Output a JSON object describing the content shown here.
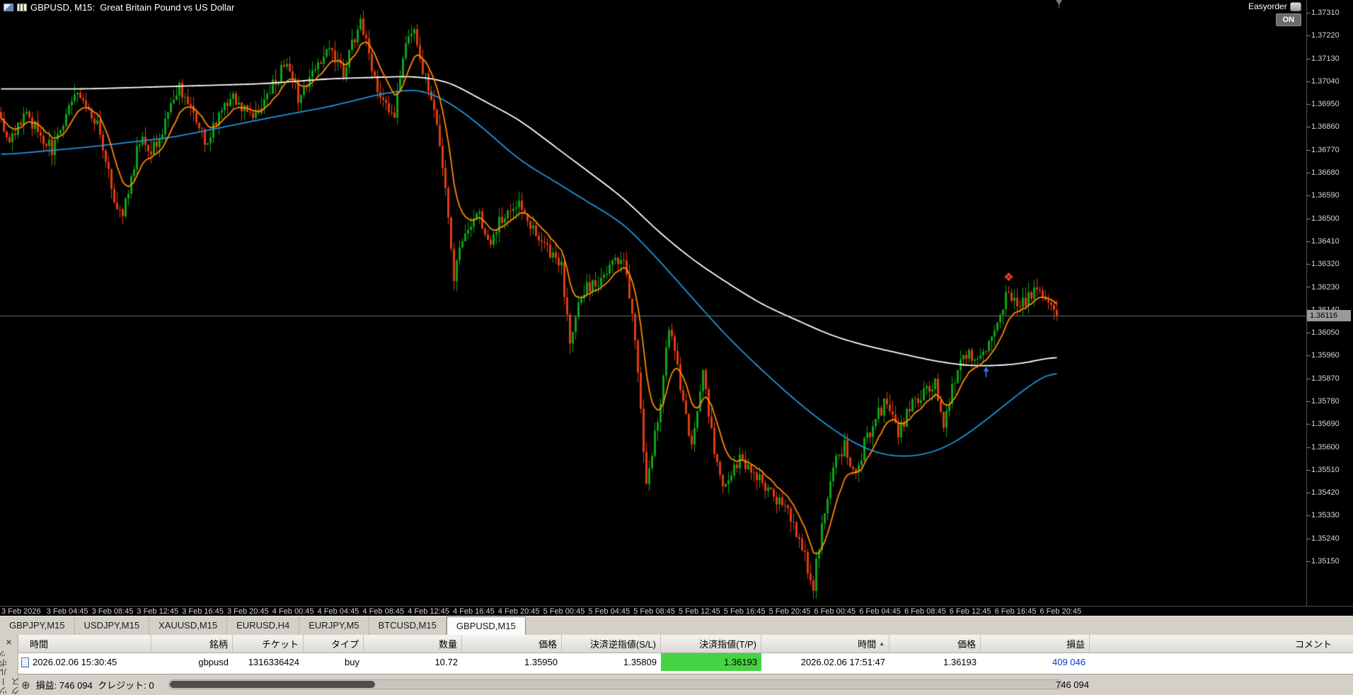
{
  "window": {
    "symbol_title": "GBPUSD, M15:  Great Britain Pound vs US Dollar",
    "easyorder_label": "Easyorder",
    "on_button": "ON"
  },
  "icons": {
    "close": "×",
    "expand": "⊕",
    "sort_asc": "▲"
  },
  "price_axis": {
    "current": "1.36116",
    "labels": [
      "1.37310",
      "1.37220",
      "1.37130",
      "1.37040",
      "1.36950",
      "1.36860",
      "1.36770",
      "1.36680",
      "1.36590",
      "1.36500",
      "1.36410",
      "1.36320",
      "1.36230",
      "1.36140",
      "1.36050",
      "1.35960",
      "1.35870",
      "1.35780",
      "1.35690",
      "1.35600",
      "1.35510",
      "1.35420",
      "1.35330",
      "1.35240",
      "1.35150"
    ]
  },
  "time_axis": {
    "labels": [
      "3 Feb 2026",
      "3 Feb 04:45",
      "3 Feb 08:45",
      "3 Feb 12:45",
      "3 Feb 16:45",
      "3 Feb 20:45",
      "4 Feb 00:45",
      "4 Feb 04:45",
      "4 Feb 08:45",
      "4 Feb 12:45",
      "4 Feb 16:45",
      "4 Feb 20:45",
      "5 Feb 00:45",
      "5 Feb 04:45",
      "5 Feb 08:45",
      "5 Feb 12:45",
      "5 Feb 16:45",
      "5 Feb 20:45",
      "6 Feb 00:45",
      "6 Feb 04:45",
      "6 Feb 08:45",
      "6 Feb 12:45",
      "6 Feb 16:45",
      "6 Feb 20:45"
    ]
  },
  "tabs": [
    {
      "label": "GBPJPY,M15",
      "active": false
    },
    {
      "label": "USDJPY,M15",
      "active": false
    },
    {
      "label": "XAUUSD,M15",
      "active": false
    },
    {
      "label": "EURUSD,H4",
      "active": false
    },
    {
      "label": "EURJPY,M5",
      "active": false
    },
    {
      "label": "BTCUSD,M15",
      "active": false
    },
    {
      "label": "GBPUSD,M15",
      "active": true
    }
  ],
  "terminal": {
    "toolbox_label": "ツールボックス",
    "columns": [
      "時間",
      "銘柄",
      "チケット",
      "タイプ",
      "数量",
      "価格",
      "決済逆指値(S/L)",
      "決済指値(T/P)",
      "時間",
      "価格",
      "損益",
      "コメント"
    ],
    "sort_column_index": 8,
    "row": {
      "cells": [
        "2026.02.06 15:30:45",
        "gbpusd",
        "1316336424",
        "buy",
        "10.72",
        "1.35950",
        "1.35809",
        "1.36193",
        "2026.02.06 17:51:47",
        "1.36193",
        "409 046",
        ""
      ]
    },
    "status": {
      "profit_label": "損益:",
      "profit_value": "746 094",
      "credit_label": "クレジット:",
      "credit_value": "0",
      "total": "746 094"
    }
  },
  "chart_data": {
    "type": "candlestick",
    "symbol": "GBPUSD",
    "timeframe": "M15",
    "candle_count": 374,
    "last_close": 1.36116,
    "current_price": 1.36116,
    "axis": {
      "top_price": 1.3731,
      "bottom_price": 1.3515,
      "label_step": 0.0009
    },
    "colors": {
      "up": "#0fa318",
      "down": "#e03c10",
      "background": "#000000",
      "current_line": "#6e6e6e"
    },
    "close_anchors": [
      [
        0,
        1.3687
      ],
      [
        3,
        1.3678
      ],
      [
        8,
        1.3692
      ],
      [
        13,
        1.3685
      ],
      [
        18,
        1.3677
      ],
      [
        27,
        1.37
      ],
      [
        34,
        1.3686
      ],
      [
        40,
        1.3658
      ],
      [
        43,
        1.3651
      ],
      [
        49,
        1.3681
      ],
      [
        53,
        1.3675
      ],
      [
        63,
        1.3702
      ],
      [
        66,
        1.3696
      ],
      [
        72,
        1.368
      ],
      [
        78,
        1.3692
      ],
      [
        82,
        1.3698
      ],
      [
        89,
        1.369
      ],
      [
        95,
        1.37
      ],
      [
        101,
        1.3712
      ],
      [
        105,
        1.3698
      ],
      [
        111,
        1.371
      ],
      [
        116,
        1.3718
      ],
      [
        121,
        1.3708
      ],
      [
        127,
        1.3728
      ],
      [
        130,
        1.3714
      ],
      [
        134,
        1.3696
      ],
      [
        139,
        1.3692
      ],
      [
        143,
        1.3719
      ],
      [
        146,
        1.3722
      ],
      [
        151,
        1.3701
      ],
      [
        154,
        1.3686
      ],
      [
        157,
        1.3661
      ],
      [
        160,
        1.3628
      ],
      [
        163,
        1.3641
      ],
      [
        168,
        1.3654
      ],
      [
        172,
        1.364
      ],
      [
        177,
        1.365
      ],
      [
        183,
        1.3656
      ],
      [
        188,
        1.3645
      ],
      [
        194,
        1.3636
      ],
      [
        198,
        1.3631
      ],
      [
        201,
        1.3603
      ],
      [
        205,
        1.3621
      ],
      [
        211,
        1.3625
      ],
      [
        215,
        1.363
      ],
      [
        220,
        1.3636
      ],
      [
        224,
        1.3601
      ],
      [
        228,
        1.3546
      ],
      [
        232,
        1.357
      ],
      [
        236,
        1.3607
      ],
      [
        240,
        1.3585
      ],
      [
        244,
        1.3561
      ],
      [
        248,
        1.3589
      ],
      [
        252,
        1.3559
      ],
      [
        256,
        1.3543
      ],
      [
        261,
        1.3556
      ],
      [
        266,
        1.3548
      ],
      [
        270,
        1.3545
      ],
      [
        275,
        1.3538
      ],
      [
        279,
        1.3532
      ],
      [
        284,
        1.3516
      ],
      [
        287,
        1.3506
      ],
      [
        290,
        1.3529
      ],
      [
        294,
        1.3553
      ],
      [
        298,
        1.3561
      ],
      [
        302,
        1.3548
      ],
      [
        305,
        1.3561
      ],
      [
        309,
        1.3571
      ],
      [
        313,
        1.3579
      ],
      [
        317,
        1.3566
      ],
      [
        321,
        1.3575
      ],
      [
        325,
        1.3581
      ],
      [
        330,
        1.3586
      ],
      [
        333,
        1.357
      ],
      [
        337,
        1.3587
      ],
      [
        341,
        1.3597
      ],
      [
        345,
        1.3592
      ],
      [
        349,
        1.3601
      ],
      [
        352,
        1.3611
      ],
      [
        356,
        1.3621
      ],
      [
        359,
        1.3614
      ],
      [
        363,
        1.3619
      ],
      [
        367,
        1.3623
      ],
      [
        370,
        1.3618
      ],
      [
        373,
        1.36116
      ]
    ],
    "ma_lines": [
      {
        "name": "slow-ma",
        "color": "#ffffff",
        "source": "anchors",
        "anchors": [
          [
            0,
            1.3701
          ],
          [
            30,
            1.3701
          ],
          [
            61,
            1.3702
          ],
          [
            92,
            1.3703
          ],
          [
            116,
            1.3705
          ],
          [
            146,
            1.3706
          ],
          [
            158,
            1.3704
          ],
          [
            171,
            1.3696
          ],
          [
            183,
            1.3689
          ],
          [
            196,
            1.3678
          ],
          [
            208,
            1.3668
          ],
          [
            220,
            1.3658
          ],
          [
            232,
            1.3645
          ],
          [
            244,
            1.3634
          ],
          [
            256,
            1.3625
          ],
          [
            269,
            1.3616
          ],
          [
            281,
            1.361
          ],
          [
            293,
            1.3604
          ],
          [
            305,
            1.36
          ],
          [
            317,
            1.3597
          ],
          [
            329,
            1.3594
          ],
          [
            341,
            1.3592
          ],
          [
            352,
            1.3592
          ],
          [
            362,
            1.3593
          ],
          [
            373,
            1.3596
          ]
        ]
      },
      {
        "name": "mid-ma",
        "color": "#1f93dd",
        "source": "anchors",
        "anchors": [
          [
            0,
            1.3675
          ],
          [
            30,
            1.3678
          ],
          [
            61,
            1.3682
          ],
          [
            92,
            1.3689
          ],
          [
            116,
            1.3694
          ],
          [
            134,
            1.3699
          ],
          [
            146,
            1.3701
          ],
          [
            153,
            1.3699
          ],
          [
            162,
            1.3693
          ],
          [
            171,
            1.3685
          ],
          [
            183,
            1.3673
          ],
          [
            195,
            1.3665
          ],
          [
            208,
            1.3656
          ],
          [
            220,
            1.3648
          ],
          [
            232,
            1.3634
          ],
          [
            244,
            1.3619
          ],
          [
            256,
            1.3604
          ],
          [
            269,
            1.359
          ],
          [
            281,
            1.3578
          ],
          [
            290,
            1.357
          ],
          [
            299,
            1.3563
          ],
          [
            308,
            1.3558
          ],
          [
            317,
            1.3556
          ],
          [
            327,
            1.3557
          ],
          [
            336,
            1.3561
          ],
          [
            345,
            1.3568
          ],
          [
            354,
            1.3576
          ],
          [
            363,
            1.3584
          ],
          [
            373,
            1.3591
          ]
        ]
      },
      {
        "name": "fast-ma",
        "color": "#ff8a05",
        "source": "ema",
        "period": 10
      }
    ],
    "markers": [
      {
        "name": "buy-entry-arrow",
        "shape": "arrow-up",
        "idx": 348,
        "price": 1.359,
        "color": "#3b6fe0"
      },
      {
        "name": "easyorder-signal",
        "shape": "flower",
        "idx": 356,
        "price": 1.3627,
        "color": "#e8421a"
      }
    ]
  }
}
